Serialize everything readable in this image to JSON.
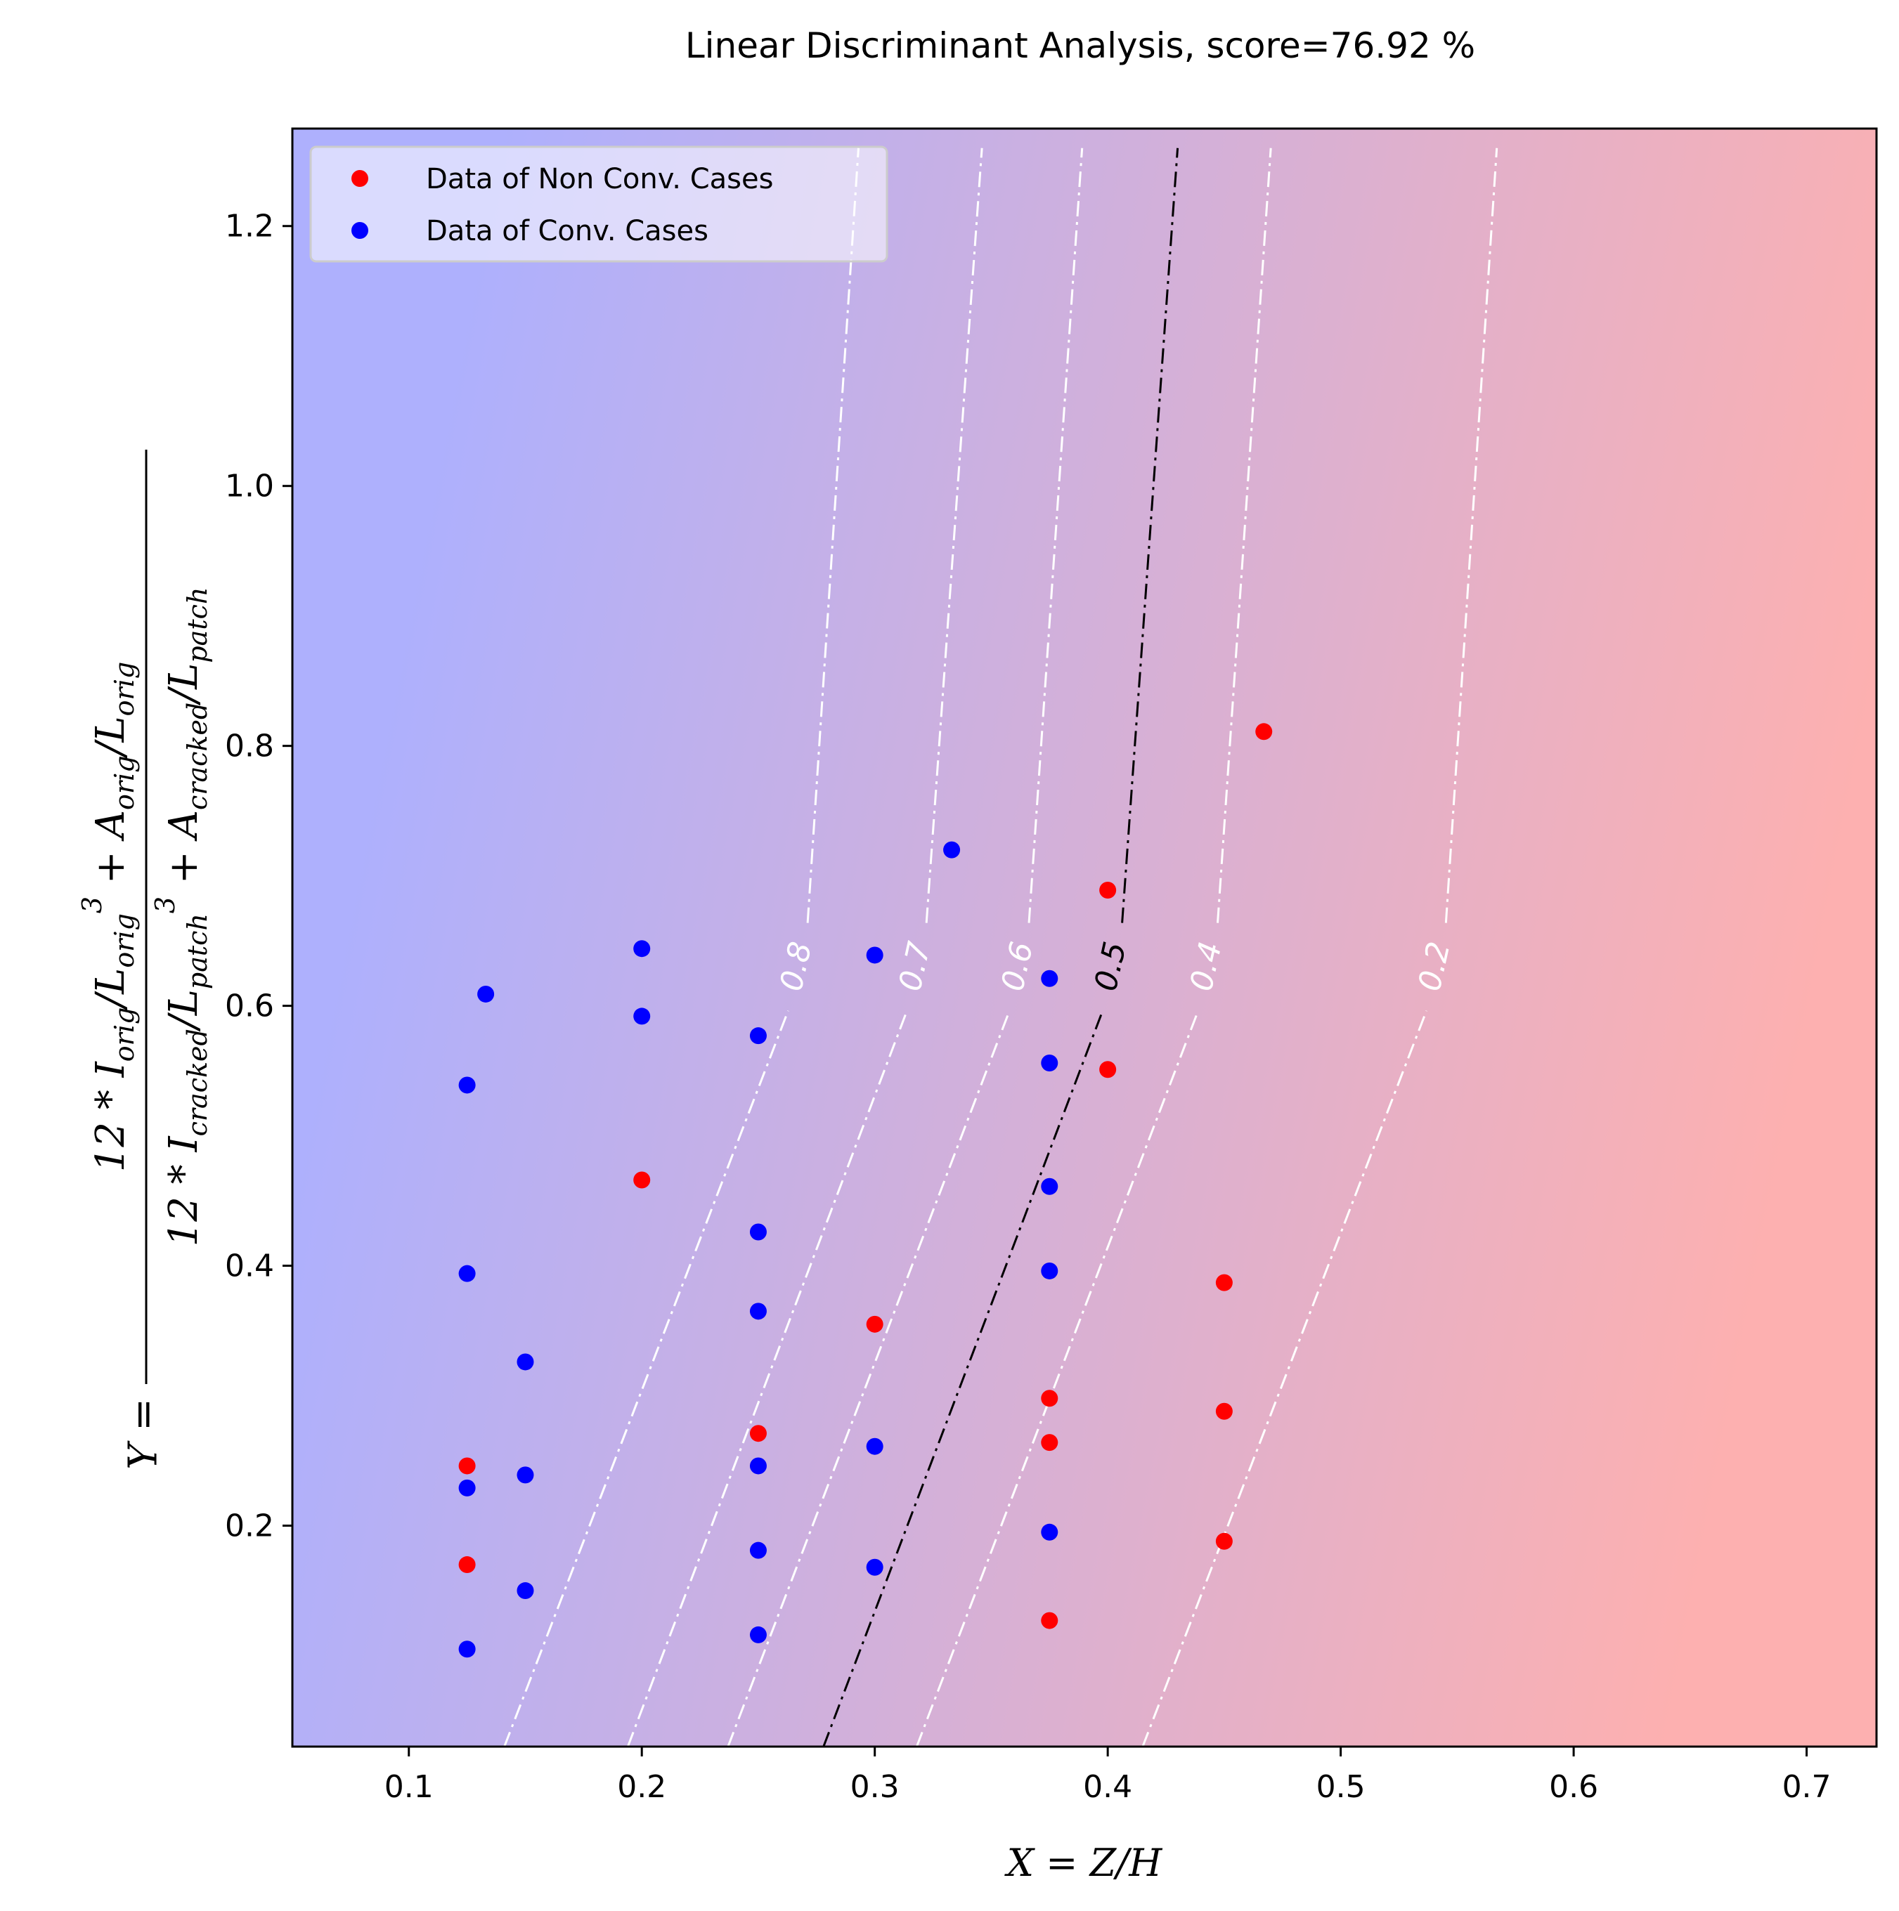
{
  "chart_data": {
    "type": "scatter",
    "title": "Linear Discriminant Analysis, score=76.92 %",
    "xlabel": "X = Z/H",
    "ylabel": {
      "lhs": "Y =",
      "numerator": "12 * I_orig / L_orig^3 + A_orig / L_orig",
      "denominator": "12 * I_cracked / L_patch^3 + A_cracked / L_patch"
    },
    "xlim": [
      0.05,
      0.73
    ],
    "ylim": [
      0.03,
      1.275
    ],
    "xticks": [
      0.1,
      0.2,
      0.3,
      0.4,
      0.5,
      0.6,
      0.7
    ],
    "xtick_labels": [
      "0.1",
      "0.2",
      "0.3",
      "0.4",
      "0.5",
      "0.6",
      "0.7"
    ],
    "yticks": [
      0.2,
      0.4,
      0.6,
      0.8,
      1.0,
      1.2
    ],
    "ytick_labels": [
      "0.2",
      "0.4",
      "0.6",
      "0.8",
      "1.0",
      "1.2"
    ],
    "legend": {
      "location": "upper-left",
      "entries": [
        {
          "label": "Data of Non Conv. Cases",
          "color": "#ff0000"
        },
        {
          "label": "Data of Conv. Cases",
          "color": "#0000ff"
        }
      ]
    },
    "background_colors": {
      "low": "#aeb0fd",
      "high": "#fdb0b0"
    },
    "series": [
      {
        "name": "Data of Non Conv. Cases",
        "color": "#ff0000",
        "points": [
          [
            0.125,
            0.246
          ],
          [
            0.125,
            0.17
          ],
          [
            0.2,
            0.466
          ],
          [
            0.25,
            0.271
          ],
          [
            0.3,
            0.355
          ],
          [
            0.375,
            0.298
          ],
          [
            0.375,
            0.264
          ],
          [
            0.375,
            0.127
          ],
          [
            0.4,
            0.689
          ],
          [
            0.4,
            0.551
          ],
          [
            0.45,
            0.387
          ],
          [
            0.45,
            0.288
          ],
          [
            0.45,
            0.188
          ],
          [
            0.467,
            0.811
          ]
        ]
      },
      {
        "name": "Data of Conv. Cases",
        "color": "#0000ff",
        "points": [
          [
            0.125,
            0.539
          ],
          [
            0.125,
            0.394
          ],
          [
            0.125,
            0.229
          ],
          [
            0.125,
            0.105
          ],
          [
            0.133,
            0.609
          ],
          [
            0.15,
            0.326
          ],
          [
            0.15,
            0.239
          ],
          [
            0.15,
            0.15
          ],
          [
            0.2,
            0.644
          ],
          [
            0.2,
            0.592
          ],
          [
            0.25,
            0.577
          ],
          [
            0.25,
            0.426
          ],
          [
            0.25,
            0.365
          ],
          [
            0.25,
            0.246
          ],
          [
            0.25,
            0.181
          ],
          [
            0.25,
            0.116
          ],
          [
            0.3,
            0.639
          ],
          [
            0.3,
            0.261
          ],
          [
            0.3,
            0.168
          ],
          [
            0.333,
            0.72
          ],
          [
            0.375,
            0.621
          ],
          [
            0.375,
            0.556
          ],
          [
            0.375,
            0.461
          ],
          [
            0.375,
            0.396
          ],
          [
            0.375,
            0.195
          ]
        ]
      }
    ],
    "contours": [
      {
        "level": "0.8",
        "x_at_bottom": 0.141,
        "x_at_top": 0.293,
        "label_pos": [
          0.267,
          0.63
        ],
        "color": "#ffffff"
      },
      {
        "level": "0.7",
        "x_at_bottom": 0.194,
        "x_at_top": 0.346,
        "label_pos": [
          0.318,
          0.63
        ],
        "color": "#ffffff"
      },
      {
        "level": "0.6",
        "x_at_bottom": 0.237,
        "x_at_top": 0.389,
        "label_pos": [
          0.362,
          0.63
        ],
        "color": "#ffffff"
      },
      {
        "level": "0.5",
        "x_at_bottom": 0.278,
        "x_at_top": 0.43,
        "label_pos": [
          0.402,
          0.63
        ],
        "color": "#000000"
      },
      {
        "level": "0.4",
        "x_at_bottom": 0.318,
        "x_at_top": 0.47,
        "label_pos": [
          0.443,
          0.63
        ],
        "color": "#ffffff"
      },
      {
        "level": "0.2",
        "x_at_bottom": 0.415,
        "x_at_top": 0.567,
        "label_pos": [
          0.541,
          0.63
        ],
        "color": "#ffffff"
      }
    ],
    "contour_y_span": [
      0.03,
      1.26
    ]
  }
}
